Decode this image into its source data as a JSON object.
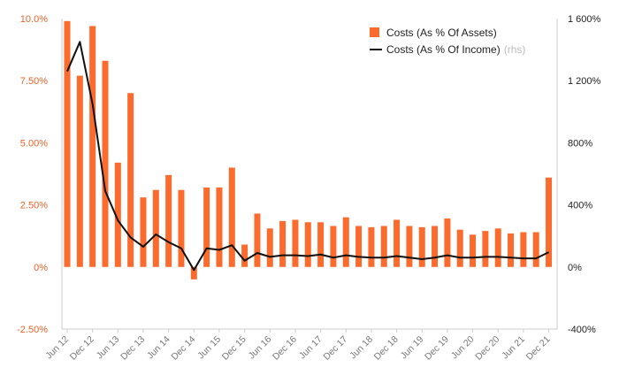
{
  "chart_data": {
    "type": "bar+line",
    "colors": {
      "bars": "#fa6b2d",
      "line": "#111111",
      "left_ticks": "#e8632a",
      "right_ticks": "#222222"
    },
    "legend": {
      "placement": "top-right",
      "bar_label": "Costs (As % Of Assets)",
      "line_label": "Costs (As % Of Income)",
      "line_suffix": "(rhs)"
    },
    "grid": false,
    "y_left": {
      "lim": [
        -2.5,
        10.0
      ],
      "ticks": [
        "10.0%",
        "7.50%",
        "5.00%",
        "2.50%",
        "0%",
        "-2.50%"
      ],
      "tick_values": [
        10.0,
        7.5,
        5.0,
        2.5,
        0,
        -2.5
      ]
    },
    "y_right": {
      "lim": [
        -400,
        1600
      ],
      "ticks": [
        "1 600%",
        "1 200%",
        "800%",
        "400%",
        "0%",
        "-400%"
      ],
      "tick_values": [
        1600,
        1200,
        800,
        400,
        0,
        -400
      ]
    },
    "x_tick_labels": [
      "Jun 12",
      "Dec 12",
      "Jun 13",
      "Dec 13",
      "Jun 14",
      "Dec 14",
      "Jun 15",
      "Dec 15",
      "Jun 16",
      "Dec 16",
      "Jun 17",
      "Dec 17",
      "Jun 18",
      "Dec 18",
      "Jun 19",
      "Dec 19",
      "Jun 20",
      "Dec 20",
      "Jun 21",
      "Dec 21"
    ],
    "series": [
      {
        "name": "Costs (As % Of Assets)",
        "kind": "bar",
        "axis": "left",
        "values": [
          9.9,
          7.7,
          9.7,
          8.3,
          4.2,
          7.0,
          2.8,
          3.1,
          3.7,
          3.1,
          -0.5,
          3.2,
          3.2,
          4.0,
          0.9,
          2.15,
          1.55,
          1.85,
          1.9,
          1.8,
          1.8,
          1.65,
          2.0,
          1.65,
          1.6,
          1.65,
          1.9,
          1.65,
          1.6,
          1.65,
          1.95,
          1.5,
          1.3,
          1.45,
          1.55,
          1.35,
          1.4,
          1.4,
          3.6
        ]
      },
      {
        "name": "Costs (As % Of Income)",
        "kind": "line",
        "axis": "right",
        "values": [
          1260,
          1450,
          1050,
          490,
          300,
          190,
          130,
          210,
          160,
          120,
          -20,
          120,
          110,
          140,
          40,
          90,
          65,
          75,
          75,
          70,
          80,
          60,
          75,
          65,
          60,
          60,
          70,
          60,
          50,
          60,
          75,
          60,
          60,
          65,
          65,
          60,
          55,
          55,
          95
        ]
      }
    ]
  }
}
